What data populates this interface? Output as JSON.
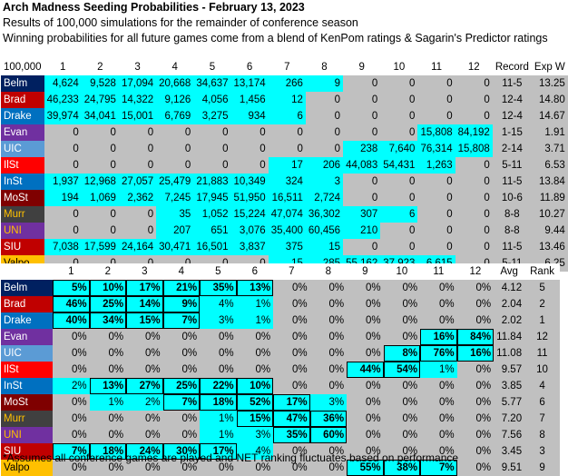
{
  "header": {
    "title": "Arch Madness Seeding Probabilities - February 13, 2023",
    "line2": "Results of 100,000 simulations for the remainder of conference season",
    "line3": "Winning probabilities for all future games come from a blend of KenPom ratings & Sagarin's Predictor ratings"
  },
  "colors": {
    "grey": "#c0c0c0",
    "cyan": "#00ffff",
    "team_bg": {
      "Belm": "#002060",
      "Brad": "#c00000",
      "Drake": "#0070c0",
      "Evan": "#7030a0",
      "UIC": "#5b9bd5",
      "IlSt": "#ff0000",
      "InSt": "#0070c0",
      "MoSt": "#7f0000",
      "Murr": "#404040",
      "UNI": "#7030a0",
      "SIU": "#c00000",
      "Valpo": "#ffc000"
    },
    "team_fg": {
      "Belm": "#ffffff",
      "Brad": "#ffffff",
      "Drake": "#ffffff",
      "Evan": "#ffffff",
      "UIC": "#ffffff",
      "IlSt": "#ffffff",
      "InSt": "#ffffff",
      "MoSt": "#ffffff",
      "Murr": "#ffc000",
      "UNI": "#ffc000",
      "SIU": "#ffffff",
      "Valpo": "#000000"
    }
  },
  "table1": {
    "corner": "100,000",
    "col_headers": [
      "1",
      "2",
      "3",
      "4",
      "5",
      "6",
      "7",
      "8",
      "9",
      "10",
      "11",
      "12",
      "Record",
      "Exp W"
    ],
    "rows": [
      {
        "team": "Belm",
        "vals": [
          "4,624",
          "9,528",
          "17,094",
          "20,668",
          "34,637",
          "13,174",
          "266",
          "9",
          "0",
          "0",
          "0",
          "0"
        ],
        "record": "11-5",
        "exp": "13.25"
      },
      {
        "team": "Brad",
        "vals": [
          "46,233",
          "24,795",
          "14,322",
          "9,126",
          "4,056",
          "1,456",
          "12",
          "0",
          "0",
          "0",
          "0",
          "0"
        ],
        "record": "12-4",
        "exp": "14.80"
      },
      {
        "team": "Drake",
        "vals": [
          "39,974",
          "34,041",
          "15,001",
          "6,769",
          "3,275",
          "934",
          "6",
          "0",
          "0",
          "0",
          "0",
          "0"
        ],
        "record": "12-4",
        "exp": "14.67"
      },
      {
        "team": "Evan",
        "vals": [
          "0",
          "0",
          "0",
          "0",
          "0",
          "0",
          "0",
          "0",
          "0",
          "0",
          "15,808",
          "84,192"
        ],
        "record": "1-15",
        "exp": "1.91"
      },
      {
        "team": "UIC",
        "vals": [
          "0",
          "0",
          "0",
          "0",
          "0",
          "0",
          "0",
          "0",
          "238",
          "7,640",
          "76,314",
          "15,808"
        ],
        "record": "2-14",
        "exp": "3.71"
      },
      {
        "team": "IlSt",
        "vals": [
          "0",
          "0",
          "0",
          "0",
          "0",
          "0",
          "17",
          "206",
          "44,083",
          "54,431",
          "1,263",
          "0"
        ],
        "record": "5-11",
        "exp": "6.53"
      },
      {
        "team": "InSt",
        "vals": [
          "1,937",
          "12,968",
          "27,057",
          "25,479",
          "21,883",
          "10,349",
          "324",
          "3",
          "0",
          "0",
          "0",
          "0"
        ],
        "record": "11-5",
        "exp": "13.84"
      },
      {
        "team": "MoSt",
        "vals": [
          "194",
          "1,069",
          "2,362",
          "7,245",
          "17,945",
          "51,950",
          "16,511",
          "2,724",
          "0",
          "0",
          "0",
          "0"
        ],
        "record": "10-6",
        "exp": "11.89"
      },
      {
        "team": "Murr",
        "vals": [
          "0",
          "0",
          "0",
          "35",
          "1,052",
          "15,224",
          "47,074",
          "36,302",
          "307",
          "6",
          "0",
          "0"
        ],
        "record": "8-8",
        "exp": "10.27"
      },
      {
        "team": "UNI",
        "vals": [
          "0",
          "0",
          "0",
          "207",
          "651",
          "3,076",
          "35,400",
          "60,456",
          "210",
          "0",
          "0",
          "0"
        ],
        "record": "8-8",
        "exp": "9.44"
      },
      {
        "team": "SIU",
        "vals": [
          "7,038",
          "17,599",
          "24,164",
          "30,471",
          "16,501",
          "3,837",
          "375",
          "15",
          "0",
          "0",
          "0",
          "0"
        ],
        "record": "11-5",
        "exp": "13.46"
      },
      {
        "team": "Valpo",
        "vals": [
          "0",
          "0",
          "0",
          "0",
          "0",
          "0",
          "15",
          "285",
          "55,162",
          "37,923",
          "6,615",
          "0"
        ],
        "record": "5-11",
        "exp": "6.25"
      }
    ]
  },
  "table2": {
    "corner": "",
    "col_headers": [
      "1",
      "2",
      "3",
      "4",
      "5",
      "6",
      "7",
      "8",
      "9",
      "10",
      "11",
      "12",
      "Avg",
      "Rank"
    ],
    "rows": [
      {
        "team": "Belm",
        "vals": [
          "5%",
          "10%",
          "17%",
          "21%",
          "35%",
          "13%",
          "0%",
          "0%",
          "0%",
          "0%",
          "0%",
          "0%"
        ],
        "avg": "4.12",
        "rank": "5"
      },
      {
        "team": "Brad",
        "vals": [
          "46%",
          "25%",
          "14%",
          "9%",
          "4%",
          "1%",
          "0%",
          "0%",
          "0%",
          "0%",
          "0%",
          "0%"
        ],
        "avg": "2.04",
        "rank": "2"
      },
      {
        "team": "Drake",
        "vals": [
          "40%",
          "34%",
          "15%",
          "7%",
          "3%",
          "1%",
          "0%",
          "0%",
          "0%",
          "0%",
          "0%",
          "0%"
        ],
        "avg": "2.02",
        "rank": "1"
      },
      {
        "team": "Evan",
        "vals": [
          "0%",
          "0%",
          "0%",
          "0%",
          "0%",
          "0%",
          "0%",
          "0%",
          "0%",
          "0%",
          "16%",
          "84%"
        ],
        "avg": "11.84",
        "rank": "12"
      },
      {
        "team": "UIC",
        "vals": [
          "0%",
          "0%",
          "0%",
          "0%",
          "0%",
          "0%",
          "0%",
          "0%",
          "0%",
          "8%",
          "76%",
          "16%"
        ],
        "avg": "11.08",
        "rank": "11"
      },
      {
        "team": "IlSt",
        "vals": [
          "0%",
          "0%",
          "0%",
          "0%",
          "0%",
          "0%",
          "0%",
          "0%",
          "44%",
          "54%",
          "1%",
          "0%"
        ],
        "avg": "9.57",
        "rank": "10"
      },
      {
        "team": "InSt",
        "vals": [
          "2%",
          "13%",
          "27%",
          "25%",
          "22%",
          "10%",
          "0%",
          "0%",
          "0%",
          "0%",
          "0%",
          "0%"
        ],
        "avg": "3.85",
        "rank": "4"
      },
      {
        "team": "MoSt",
        "vals": [
          "0%",
          "1%",
          "2%",
          "7%",
          "18%",
          "52%",
          "17%",
          "3%",
          "0%",
          "0%",
          "0%",
          "0%"
        ],
        "avg": "5.77",
        "rank": "6"
      },
      {
        "team": "Murr",
        "vals": [
          "0%",
          "0%",
          "0%",
          "0%",
          "1%",
          "15%",
          "47%",
          "36%",
          "0%",
          "0%",
          "0%",
          "0%"
        ],
        "avg": "7.20",
        "rank": "7"
      },
      {
        "team": "UNI",
        "vals": [
          "0%",
          "0%",
          "0%",
          "0%",
          "1%",
          "3%",
          "35%",
          "60%",
          "0%",
          "0%",
          "0%",
          "0%"
        ],
        "avg": "7.56",
        "rank": "8"
      },
      {
        "team": "SIU",
        "vals": [
          "7%",
          "18%",
          "24%",
          "30%",
          "17%",
          "4%",
          "0%",
          "0%",
          "0%",
          "0%",
          "0%",
          "0%"
        ],
        "avg": "3.45",
        "rank": "3"
      },
      {
        "team": "Valpo",
        "vals": [
          "0%",
          "0%",
          "0%",
          "0%",
          "0%",
          "0%",
          "0%",
          "0%",
          "55%",
          "38%",
          "7%",
          "0%"
        ],
        "avg": "9.51",
        "rank": "9"
      }
    ]
  },
  "footnote": "*Assumes all conference games are played and NET ranking fluctuates based on performance"
}
